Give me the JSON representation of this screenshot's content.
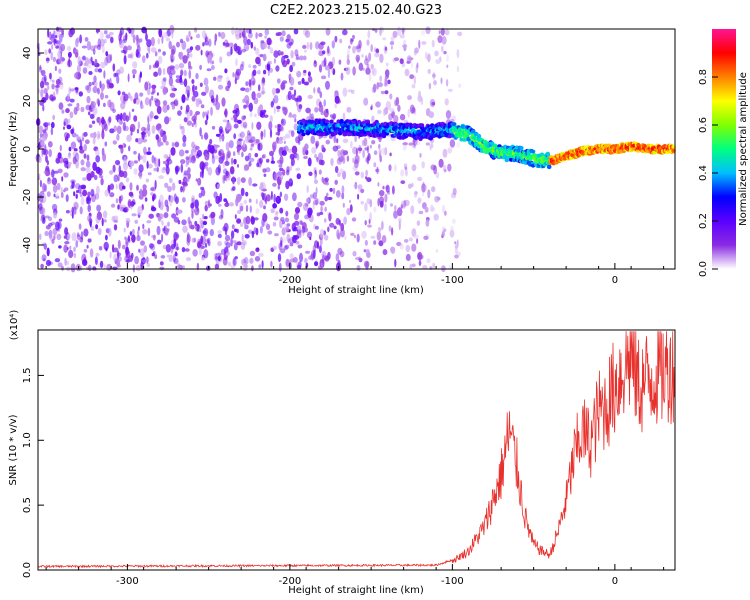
{
  "chart_data": [
    {
      "type": "heatmap",
      "title": "C2E2.2023.215.02.40.G23",
      "xlabel": "Height of straight line (km)",
      "ylabel": "Frequency (Hz)",
      "xlim": [
        -355,
        37
      ],
      "ylim": [
        -50,
        50
      ],
      "xticks": [
        -300,
        -200,
        -100,
        0
      ],
      "yticks": [
        -40,
        -20,
        0,
        20,
        40
      ],
      "colorbar": {
        "label": "Normalized spectral amplitude",
        "range": [
          0,
          1
        ],
        "ticks": [
          "0.0",
          "0.2",
          "0.4",
          "0.6",
          "0.8"
        ],
        "colors": [
          "#ffffff",
          "#8a2be2",
          "#5a00ff",
          "#0000ff",
          "#00bfff",
          "#00ff80",
          "#80ff00",
          "#ffff00",
          "#ff8000",
          "#ff0000",
          "#ff1493"
        ]
      },
      "ridge": {
        "description_points_x": [
          -195,
          -180,
          -160,
          -140,
          -120,
          -100,
          -90,
          -80,
          -70,
          -60,
          -50,
          -40,
          -30,
          -20,
          -10,
          0,
          10,
          20,
          37
        ],
        "description_points_y": [
          9,
          9,
          9,
          8,
          7,
          8,
          6,
          1,
          -2,
          -2,
          -4,
          -5,
          -3,
          -1,
          0,
          0,
          1,
          0,
          0
        ]
      }
    },
    {
      "type": "line",
      "xlabel": "Height of straight line (km)",
      "ylabel": "SNR (10 * v/v)",
      "multiplier": "(x10⁴)",
      "xlim": [
        -355,
        37
      ],
      "ylim": [
        0,
        1.85
      ],
      "xticks": [
        -300,
        -200,
        -100,
        0
      ],
      "yticks": [
        "0.0",
        "0.5",
        "1.0",
        "1.5"
      ],
      "color": "#e8302c",
      "envelope": {
        "x": [
          -355,
          -110,
          -100,
          -90,
          -80,
          -70,
          -65,
          -60,
          -55,
          -50,
          -45,
          -40,
          -35,
          -30,
          -25,
          -20,
          -15,
          -10,
          -5,
          0,
          5,
          10,
          15,
          20,
          25,
          30,
          37
        ],
        "y": [
          0.02,
          0.03,
          0.07,
          0.15,
          0.35,
          0.75,
          1.1,
          0.8,
          0.4,
          0.2,
          0.15,
          0.12,
          0.3,
          0.55,
          0.9,
          1.1,
          1.0,
          1.25,
          1.3,
          1.45,
          1.6,
          1.7,
          1.45,
          1.5,
          1.55,
          1.58,
          1.62
        ]
      }
    }
  ]
}
